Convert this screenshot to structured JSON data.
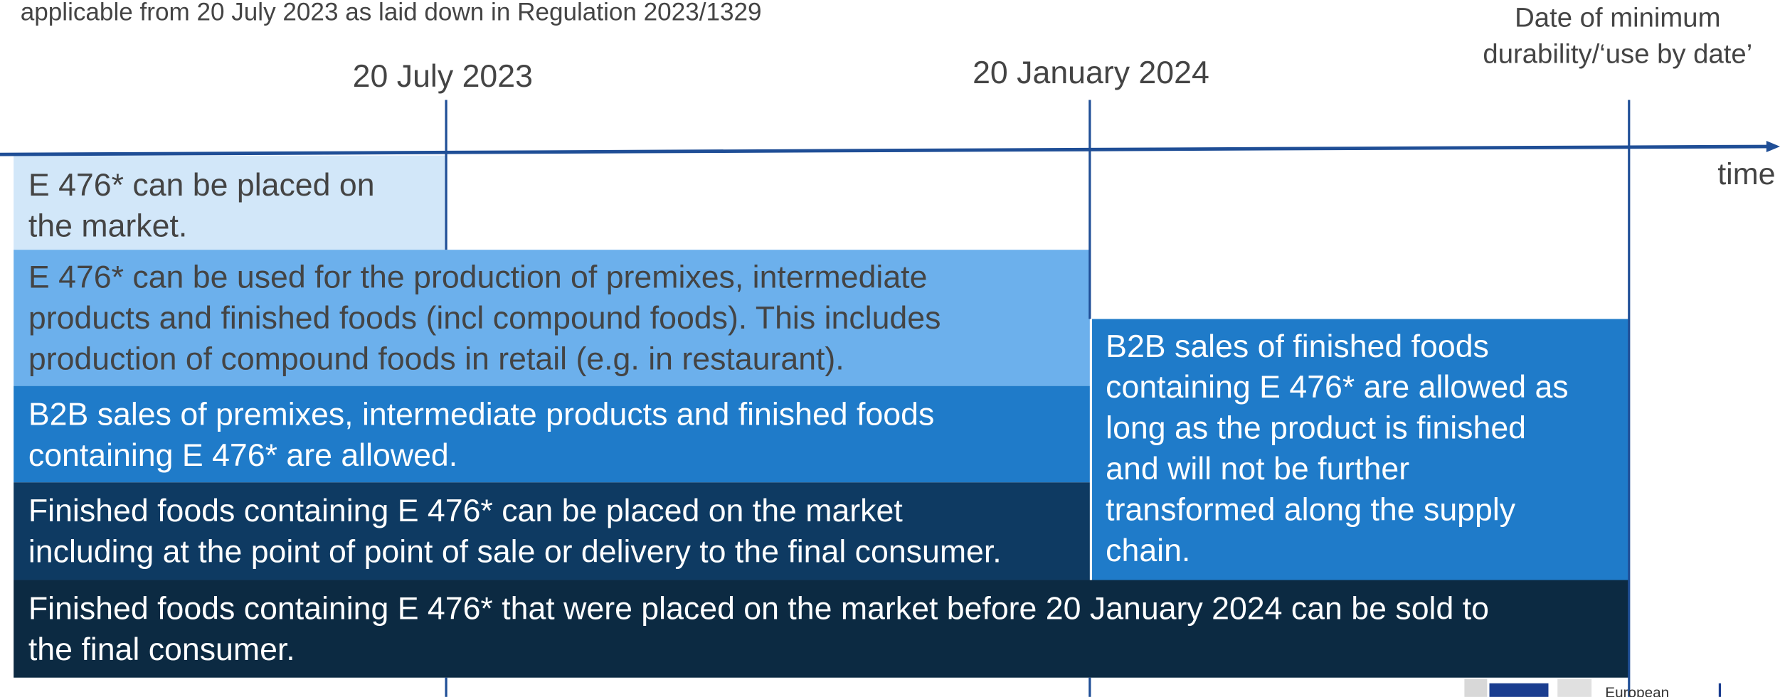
{
  "header": "applicable from 20 July 2023 as laid down in Regulation 2023/1329",
  "timeline": {
    "milestones": [
      {
        "lines": [
          "20 July 2023"
        ]
      },
      {
        "lines": [
          "20 January 2024"
        ]
      },
      {
        "lines": [
          "Date of minimum",
          "durability/‘use by date’"
        ]
      }
    ],
    "axis_label": "time"
  },
  "boxes": [
    {
      "lines": [
        "E 476* can be placed on",
        "the market."
      ]
    },
    {
      "lines": [
        "E 476* can be used for the production of premixes, intermediate",
        "products and finished foods (incl compound foods). This includes",
        "production of compound foods in retail (e.g. in restaurant)."
      ]
    },
    {
      "lines": [
        "B2B sales of premixes, intermediate products and finished foods",
        "containing E 476* are allowed."
      ]
    },
    {
      "lines": [
        "Finished foods containing E 476* can be placed on the market",
        "including at the point of point of sale or delivery to the final consumer."
      ]
    },
    {
      "lines": [
        "B2B sales of finished foods",
        "containing E 476* are allowed as",
        "long as the product is finished",
        "and will not be further",
        "transformed along the supply",
        "chain."
      ]
    },
    {
      "lines": [
        "Finished foods containing E 476* that were placed on the market before 20 January 2024 can be sold to",
        "the final consumer."
      ]
    }
  ],
  "logo": "European"
}
